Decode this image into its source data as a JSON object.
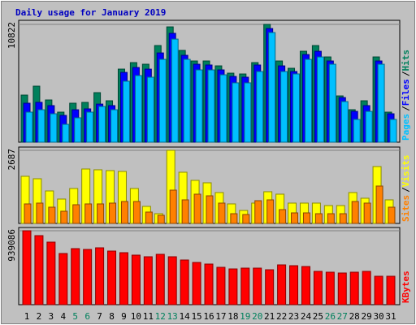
{
  "title": "Daily usage for January 2019",
  "legend_separator": "/",
  "chart_data": [
    {
      "type": "bar",
      "ylim": [
        0,
        11195
      ],
      "yticks": [
        10822
      ],
      "series": [
        {
          "name": "Hits",
          "color": "#00805c",
          "values": [
            4327,
            5147,
            3879,
            2760,
            3581,
            3655,
            4551,
            3805,
            6714,
            7311,
            7162,
            8877,
            10593,
            8430,
            7460,
            7460,
            7012,
            6341,
            6266,
            7311,
            10822,
            7460,
            6789,
            8355,
            8877,
            7833,
            4252,
            2984,
            3805,
            7833,
            2760
          ]
        },
        {
          "name": "Files",
          "color": "#0000ff",
          "values": [
            3580,
            3660,
            3360,
            2460,
            2980,
            3060,
            3500,
            3360,
            6410,
            6860,
            6710,
            8200,
            10000,
            7980,
            7160,
            7090,
            6640,
            6040,
            5970,
            7090,
            10440,
            7010,
            6490,
            8050,
            8350,
            7460,
            4100,
            2830,
            3360,
            7460,
            2610
          ]
        },
        {
          "name": "Pages",
          "color": "#00c0ff",
          "values": [
            2760,
            2980,
            2610,
            1640,
            2240,
            2760,
            3280,
            2980,
            5600,
            6120,
            5970,
            7610,
            9470,
            7610,
            6640,
            6640,
            6190,
            5450,
            5450,
            6490,
            10070,
            6490,
            6270,
            7610,
            7830,
            7160,
            3730,
            2090,
            2830,
            7160,
            2090
          ]
        }
      ]
    },
    {
      "type": "bar",
      "ylim": [
        0,
        2806
      ],
      "yticks": [
        2687
      ],
      "series": [
        {
          "name": "Visits",
          "color": "#ffff00",
          "values": [
            1732,
            1642,
            1194,
            896,
            1284,
            2000,
            1971,
            1941,
            1911,
            1284,
            627,
            358,
            2687,
            1881,
            1583,
            1493,
            1135,
            717,
            478,
            747,
            1165,
            1075,
            747,
            747,
            747,
            657,
            657,
            1135,
            926,
            2090,
            866
          ]
        },
        {
          "name": "Sites",
          "color": "#ff8000",
          "values": [
            717,
            747,
            597,
            448,
            687,
            717,
            717,
            747,
            806,
            806,
            418,
            299,
            1224,
            866,
            1075,
            1015,
            747,
            358,
            328,
            836,
            866,
            508,
            388,
            388,
            358,
            358,
            358,
            806,
            747,
            1374,
            597
          ]
        }
      ]
    },
    {
      "type": "bar",
      "ylim": [
        0,
        980365
      ],
      "yticks": [
        939086
      ],
      "categories": [
        "1",
        "2",
        "3",
        "4",
        "5",
        "6",
        "7",
        "8",
        "9",
        "10",
        "11",
        "12",
        "13",
        "14",
        "15",
        "16",
        "17",
        "18",
        "19",
        "20",
        "21",
        "22",
        "23",
        "24",
        "25",
        "26",
        "27",
        "28",
        "29",
        "30",
        "31"
      ],
      "category_colors": [
        "#000000",
        "#000000",
        "#000000",
        "#000000",
        "#00805c",
        "#00805c",
        "#000000",
        "#000000",
        "#000000",
        "#000000",
        "#000000",
        "#00805c",
        "#00805c",
        "#000000",
        "#000000",
        "#000000",
        "#000000",
        "#000000",
        "#00805c",
        "#00805c",
        "#000000",
        "#000000",
        "#000000",
        "#000000",
        "#000000",
        "#00805c",
        "#00805c",
        "#000000",
        "#000000",
        "#000000",
        "#000000"
      ],
      "series": [
        {
          "name": "KBytes",
          "color": "#ff0000",
          "values": [
            939086,
            877200,
            794640,
            650160,
            712080,
            701760,
            722400,
            681120,
            660480,
            629520,
            608880,
            639840,
            608880,
            567600,
            536640,
            516000,
            474720,
            454080,
            464400,
            464400,
            443760,
            505680,
            495360,
            485040,
            423120,
            412800,
            402480,
            412800,
            423120,
            361200,
            361200
          ]
        }
      ]
    }
  ]
}
